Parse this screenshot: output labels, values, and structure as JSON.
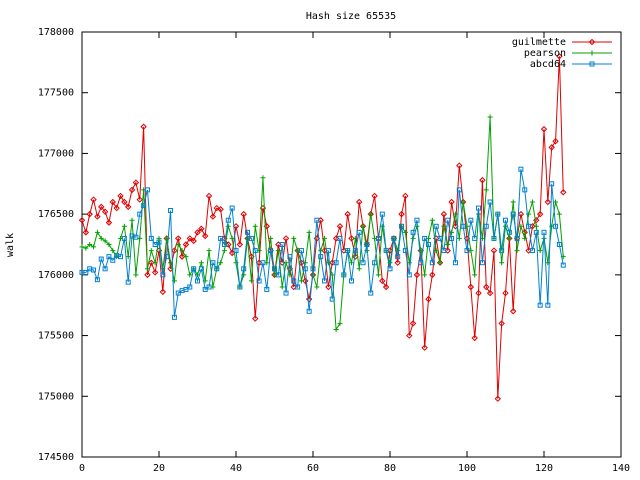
{
  "chart_data": {
    "type": "line",
    "title": "Hash size 65535",
    "ylabel": "walk",
    "x": [
      0,
      1,
      2,
      3,
      4,
      5,
      6,
      7,
      8,
      9,
      10,
      11,
      12,
      13,
      14,
      15,
      16,
      17,
      18,
      19,
      20,
      21,
      22,
      23,
      24,
      25,
      26,
      27,
      28,
      29,
      30,
      31,
      32,
      33,
      34,
      35,
      36,
      37,
      38,
      39,
      40,
      41,
      42,
      43,
      44,
      45,
      46,
      47,
      48,
      49,
      50,
      51,
      52,
      53,
      54,
      55,
      56,
      57,
      58,
      59,
      60,
      61,
      62,
      63,
      64,
      65,
      66,
      67,
      68,
      69,
      70,
      71,
      72,
      73,
      74,
      75,
      76,
      77,
      78,
      79,
      80,
      81,
      82,
      83,
      84,
      85,
      86,
      87,
      88,
      89,
      90,
      91,
      92,
      93,
      94,
      95,
      96,
      97,
      98,
      99,
      100,
      101,
      102,
      103,
      104,
      105,
      106,
      107,
      108,
      109,
      110,
      111,
      112,
      113,
      114,
      115,
      116,
      117,
      118,
      119,
      120,
      121,
      122,
      123,
      124,
      125
    ],
    "series": [
      {
        "name": "guilmette",
        "color": "#e00000",
        "marker": "diamond",
        "values": [
          176450,
          176350,
          176500,
          176620,
          176480,
          176560,
          176520,
          176430,
          176600,
          176550,
          176650,
          176600,
          176560,
          176700,
          176760,
          176620,
          177220,
          176000,
          176100,
          176020,
          176200,
          175860,
          176300,
          176050,
          176200,
          176300,
          176150,
          176250,
          176300,
          176280,
          176350,
          176380,
          176320,
          176650,
          176480,
          176550,
          176540,
          176300,
          176250,
          176180,
          176400,
          176250,
          176500,
          176300,
          176150,
          175640,
          176100,
          176550,
          176400,
          176200,
          176000,
          176250,
          176100,
          176300,
          176050,
          175900,
          176200,
          176100,
          175950,
          175800,
          176000,
          176300,
          176450,
          176200,
          175900,
          176100,
          176300,
          176400,
          176200,
          176500,
          176300,
          176150,
          176600,
          176400,
          176250,
          176500,
          176650,
          176300,
          175950,
          175900,
          176200,
          176300,
          176100,
          176500,
          176650,
          175500,
          175600,
          176000,
          176200,
          175400,
          175800,
          176000,
          176300,
          176100,
          176500,
          176200,
          176600,
          176400,
          176900,
          176600,
          176300,
          175900,
          175480,
          175850,
          176780,
          175900,
          175850,
          176200,
          174980,
          175600,
          175850,
          176300,
          175700,
          176300,
          176500,
          176350,
          176200,
          176400,
          176450,
          176500,
          177200,
          176600,
          177050,
          177100,
          177800,
          176680
        ]
      },
      {
        "name": "pearson",
        "color": "#00a000",
        "marker": "plus",
        "values": [
          176230,
          176220,
          176250,
          176230,
          176350,
          176300,
          176280,
          176250,
          176200,
          176150,
          176300,
          176400,
          176150,
          176450,
          176000,
          176300,
          176700,
          176050,
          176200,
          176100,
          176300,
          176050,
          176300,
          176100,
          175950,
          176250,
          176200,
          176150,
          176000,
          176050,
          176000,
          176100,
          175950,
          176200,
          175900,
          176050,
          176100,
          176200,
          176400,
          176300,
          176100,
          175900,
          176000,
          176300,
          175950,
          176400,
          176200,
          176800,
          176100,
          176300,
          176000,
          176200,
          175900,
          176100,
          176000,
          176300,
          176200,
          175950,
          176100,
          176350,
          176000,
          175900,
          176200,
          176300,
          176100,
          176000,
          175550,
          175600,
          176000,
          176200,
          176100,
          176300,
          176050,
          176400,
          176200,
          176500,
          176300,
          176000,
          176400,
          176200,
          176100,
          176300,
          176200,
          176400,
          176350,
          176100,
          176300,
          176400,
          176200,
          176000,
          176300,
          176450,
          176200,
          176100,
          176400,
          176250,
          176350,
          176500,
          176300,
          176600,
          176400,
          176200,
          176000,
          176500,
          176300,
          176700,
          177300,
          176300,
          176500,
          176100,
          176400,
          176300,
          176600,
          176200,
          176400,
          176300,
          176500,
          176600,
          176400,
          176200,
          176300,
          176100,
          176400,
          176600,
          176500,
          176150
        ]
      },
      {
        "name": "abcd64",
        "color": "#0080d0",
        "marker": "square",
        "values": [
          176020,
          176020,
          176050,
          176040,
          175960,
          176130,
          176050,
          176150,
          176120,
          176160,
          176150,
          176300,
          175940,
          176320,
          176310,
          176500,
          176570,
          176700,
          176300,
          176250,
          176270,
          176000,
          176150,
          176530,
          175650,
          175850,
          175870,
          175880,
          175900,
          176050,
          175950,
          176050,
          175880,
          175900,
          176100,
          176050,
          176300,
          176250,
          176450,
          176550,
          176200,
          175900,
          176050,
          176350,
          176300,
          176200,
          175950,
          176100,
          175880,
          176200,
          176050,
          176000,
          176250,
          175850,
          176150,
          175950,
          175900,
          176200,
          176050,
          175700,
          176050,
          176450,
          176150,
          175950,
          176200,
          175800,
          176100,
          176300,
          176000,
          176200,
          175950,
          176200,
          176350,
          176100,
          176250,
          175850,
          176100,
          176300,
          176500,
          176200,
          176050,
          176300,
          176150,
          176400,
          176200,
          176000,
          176350,
          176450,
          176100,
          176300,
          176250,
          176100,
          176400,
          176300,
          176200,
          176450,
          176300,
          176100,
          176700,
          176400,
          176200,
          176450,
          176300,
          176550,
          176100,
          176400,
          176600,
          176300,
          176500,
          176200,
          176450,
          176350,
          176500,
          176300,
          176870,
          176700,
          176400,
          176200,
          176350,
          175750,
          176350,
          175750,
          176750,
          176400,
          176250,
          176080
        ]
      }
    ],
    "xlim": [
      0,
      140
    ],
    "xticks": [
      0,
      20,
      40,
      60,
      80,
      100,
      120,
      140
    ],
    "ylim": [
      174500,
      178000
    ],
    "yticks": [
      174500,
      175000,
      175500,
      176000,
      176500,
      177000,
      177500,
      178000
    ],
    "legend": "top-right"
  }
}
